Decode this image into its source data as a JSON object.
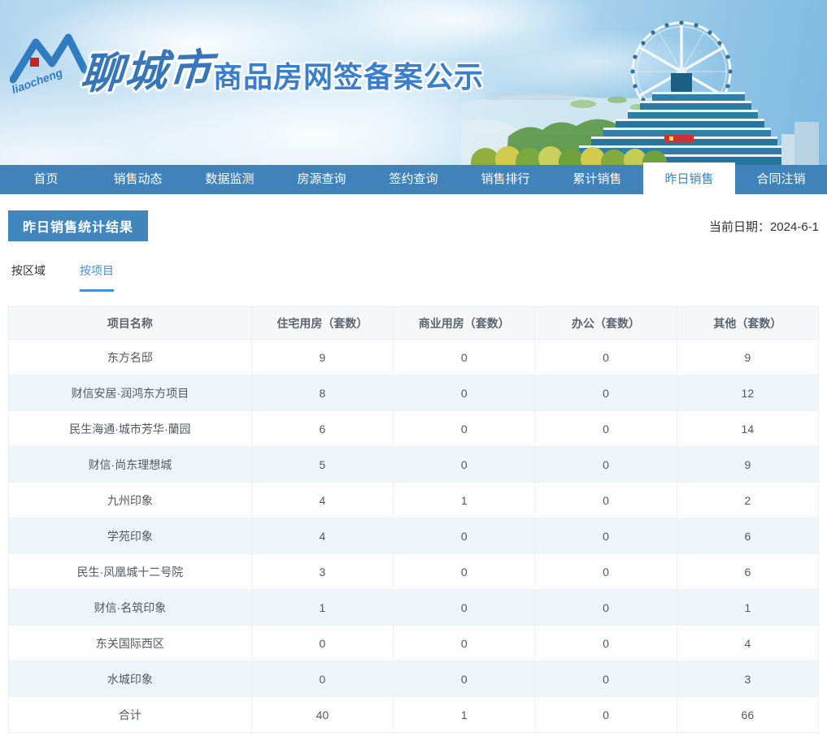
{
  "header": {
    "brand_script": "liaocheng",
    "city_name": "聊城市",
    "site_title": "商品房网签备案公示"
  },
  "nav": {
    "items": [
      {
        "label": "首页",
        "active": false
      },
      {
        "label": "销售动态",
        "active": false
      },
      {
        "label": "数据监测",
        "active": false
      },
      {
        "label": "房源查询",
        "active": false
      },
      {
        "label": "签约查询",
        "active": false
      },
      {
        "label": "销售排行",
        "active": false
      },
      {
        "label": "累计销售",
        "active": false
      },
      {
        "label": "昨日销售",
        "active": true
      },
      {
        "label": "合同注销",
        "active": false
      }
    ]
  },
  "page": {
    "section_title": "昨日销售统计结果",
    "date_label": "当前日期：",
    "date_value": "2024-6-1",
    "tabs": [
      {
        "label": "按区域",
        "active": false
      },
      {
        "label": "按项目",
        "active": true
      }
    ]
  },
  "table": {
    "columns": [
      "项目名称",
      "住宅用房（套数）",
      "商业用房（套数）",
      "办公（套数）",
      "其他（套数）"
    ],
    "rows": [
      {
        "name": "东方名邸",
        "values": [
          9,
          0,
          0,
          9
        ]
      },
      {
        "name": "财信安居·润鸿东方项目",
        "values": [
          8,
          0,
          0,
          12
        ]
      },
      {
        "name": "民生海通·城市芳华·蘭园",
        "values": [
          6,
          0,
          0,
          14
        ]
      },
      {
        "name": "财信·尚东理想城",
        "values": [
          5,
          0,
          0,
          9
        ]
      },
      {
        "name": "九州印象",
        "values": [
          4,
          1,
          0,
          2
        ]
      },
      {
        "name": "学苑印象",
        "values": [
          4,
          0,
          0,
          6
        ]
      },
      {
        "name": "民生·凤凰城十二号院",
        "values": [
          3,
          0,
          0,
          6
        ]
      },
      {
        "name": "财信·名筑印象",
        "values": [
          1,
          0,
          0,
          1
        ]
      },
      {
        "name": "东关国际西区",
        "values": [
          0,
          0,
          0,
          4
        ]
      },
      {
        "name": "水城印象",
        "values": [
          0,
          0,
          0,
          3
        ]
      },
      {
        "name": "合计",
        "values": [
          40,
          1,
          0,
          66
        ]
      }
    ]
  },
  "colors": {
    "nav_blue": "#4083ba",
    "accent_blue": "#4186bd",
    "tab_active_blue": "#4a90d9",
    "row_stripe": "#eef6fc",
    "header_text": "#5a6570"
  }
}
